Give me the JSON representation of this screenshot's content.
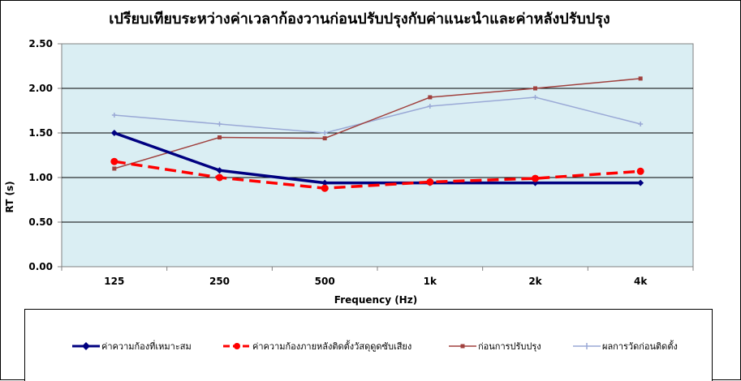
{
  "chart_data": {
    "type": "line",
    "title": "เปรียบเทียบระหว่างค่าเวลาก้องวานก่อนปรับปรุงกับค่าแนะนำและค่าหลังปรับปรุง",
    "xlabel": "Frequency (Hz)",
    "ylabel": "RT (s)",
    "categories": [
      "125",
      "250",
      "500",
      "1k",
      "2k",
      "4k"
    ],
    "ylim": [
      0,
      2.5
    ],
    "yticks": [
      "0.00",
      "0.50",
      "1.00",
      "1.50",
      "2.00",
      "2.50"
    ],
    "grid": true,
    "legend_position": "bottom",
    "plot_background": "#daeef3",
    "series": [
      {
        "name": "ค่าความก้องที่เหมาะสม",
        "values": [
          1.5,
          1.08,
          0.94,
          0.94,
          0.94,
          0.94
        ],
        "color": "#000080",
        "style": "solid-thick",
        "marker": "diamond"
      },
      {
        "name": "ค่าความก้องภายหลังติดตั้งวัสดุดูดซับเสียง",
        "values": [
          1.18,
          1.0,
          0.88,
          0.95,
          0.99,
          1.07
        ],
        "color": "#ff0000",
        "style": "dashed-thick",
        "marker": "circle"
      },
      {
        "name": "ก่อนการปรับปรุง",
        "values": [
          1.1,
          1.45,
          1.44,
          1.9,
          2.0,
          2.11
        ],
        "color": "#a0413e",
        "style": "solid-thin",
        "marker": "square"
      },
      {
        "name": "ผลการวัดก่อนติดตั้ง",
        "values": [
          1.7,
          1.6,
          1.5,
          1.8,
          1.9,
          1.6
        ],
        "color": "#9aa9d6",
        "style": "solid-thin",
        "marker": "plus"
      }
    ]
  }
}
